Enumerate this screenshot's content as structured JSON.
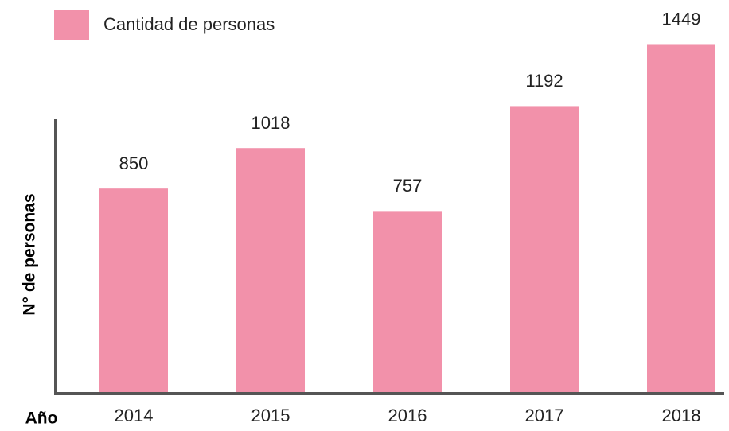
{
  "chart_data": {
    "type": "bar",
    "categories": [
      "2014",
      "2015",
      "2016",
      "2017",
      "2018"
    ],
    "series": [
      {
        "name": "Cantidad de personas",
        "color": "#f291aa",
        "values": [
          850,
          1018,
          757,
          1192,
          1449
        ]
      }
    ],
    "x_label": "Año",
    "y_label": "N° de personas",
    "ylim": [
      0,
      1500
    ]
  }
}
